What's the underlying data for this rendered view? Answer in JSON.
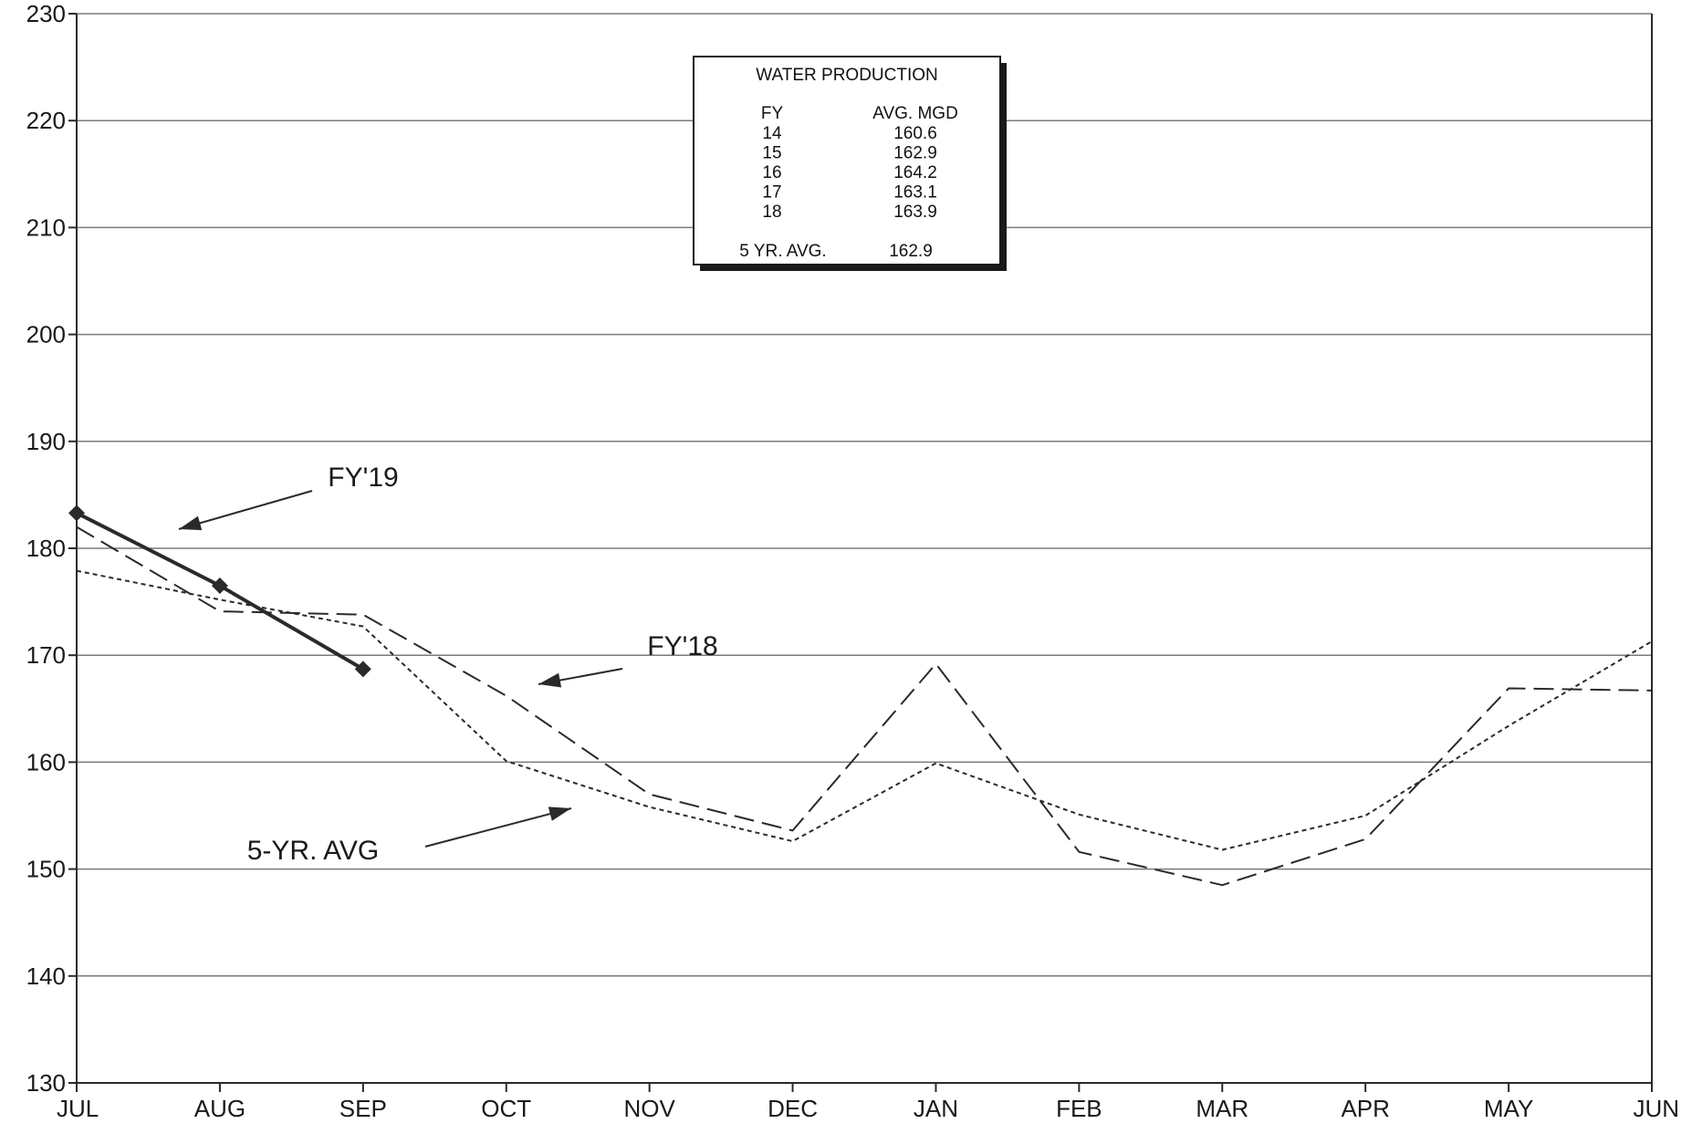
{
  "chart_data": {
    "type": "line",
    "categories": [
      "JUL",
      "AUG",
      "SEP",
      "OCT",
      "NOV",
      "DEC",
      "JAN",
      "FEB",
      "MAR",
      "APR",
      "MAY",
      "JUN"
    ],
    "ylim": [
      130,
      230
    ],
    "yticks": [
      130,
      140,
      150,
      160,
      170,
      180,
      190,
      200,
      210,
      220,
      230
    ],
    "grid": "horizontal",
    "series": [
      {
        "key": "fy19",
        "label": "FY'19",
        "style": "solid-markers",
        "values": [
          183.3,
          176.5,
          168.7,
          null,
          null,
          null,
          null,
          null,
          null,
          null,
          null,
          null
        ]
      },
      {
        "key": "fy18",
        "label": "FY'18",
        "style": "dashed",
        "values": [
          182.0,
          174.1,
          173.8,
          166.2,
          157.0,
          153.6,
          169.2,
          151.6,
          148.5,
          152.8,
          166.9,
          166.7
        ]
      },
      {
        "key": "avg5",
        "label": "5-YR. AVG",
        "style": "dotted",
        "values": [
          177.9,
          175.2,
          172.7,
          160.1,
          155.8,
          152.6,
          159.9,
          155.1,
          151.8,
          155.0,
          163.4,
          171.3
        ]
      }
    ],
    "annotations": [
      {
        "key": "fy19",
        "text": "FY'19"
      },
      {
        "key": "fy18",
        "text": "FY'18"
      },
      {
        "key": "avg5",
        "text": "5-YR. AVG"
      }
    ],
    "info_box": {
      "title": "WATER PRODUCTION",
      "col_fy": "FY",
      "col_avg": "AVG. MGD",
      "rows": [
        {
          "fy": "14",
          "avg": "160.6"
        },
        {
          "fy": "15",
          "avg": "162.9"
        },
        {
          "fy": "16",
          "avg": "164.2"
        },
        {
          "fy": "17",
          "avg": "163.1"
        },
        {
          "fy": "18",
          "avg": "163.9"
        }
      ],
      "summary_label": "5 YR. AVG.",
      "summary_value": "162.9"
    },
    "colors": {
      "line": "#2a2a2a",
      "grid": "#7a7a7a"
    }
  }
}
